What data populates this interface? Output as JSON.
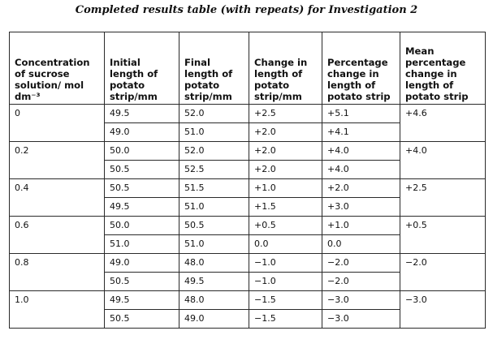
{
  "title": "Completed results table (with repeats) for Investigation 2",
  "table": {
    "headers": [
      "Concentration of sucrose solution/ mol dm⁻³",
      "Initial length of potato strip/mm",
      "Final length of potato strip/mm",
      "Change in length of potato strip/mm",
      "Percentage change in length of potato strip",
      "Mean percentage change in length of potato strip"
    ],
    "groups": [
      {
        "concentration": "0",
        "mean": "+4.6",
        "rows": [
          {
            "initial": "49.5",
            "final": "52.0",
            "change": "+2.5",
            "percent": "+5.1"
          },
          {
            "initial": "49.0",
            "final": "51.0",
            "change": "+2.0",
            "percent": "+4.1"
          }
        ]
      },
      {
        "concentration": "0.2",
        "mean": "+4.0",
        "rows": [
          {
            "initial": "50.0",
            "final": "52.0",
            "change": "+2.0",
            "percent": "+4.0"
          },
          {
            "initial": "50.5",
            "final": "52.5",
            "change": "+2.0",
            "percent": "+4.0"
          }
        ]
      },
      {
        "concentration": "0.4",
        "mean": "+2.5",
        "rows": [
          {
            "initial": "50.5",
            "final": "51.5",
            "change": "+1.0",
            "percent": "+2.0"
          },
          {
            "initial": "49.5",
            "final": "51.0",
            "change": "+1.5",
            "percent": "+3.0"
          }
        ]
      },
      {
        "concentration": "0.6",
        "mean": "+0.5",
        "rows": [
          {
            "initial": "50.0",
            "final": "50.5",
            "change": "+0.5",
            "percent": "+1.0"
          },
          {
            "initial": "51.0",
            "final": "51.0",
            "change": "0.0",
            "percent": "0.0"
          }
        ]
      },
      {
        "concentration": "0.8",
        "mean": "−2.0",
        "rows": [
          {
            "initial": "49.0",
            "final": "48.0",
            "change": "−1.0",
            "percent": "−2.0"
          },
          {
            "initial": "50.5",
            "final": "49.5",
            "change": "−1.0",
            "percent": "−2.0"
          }
        ]
      },
      {
        "concentration": "1.0",
        "mean": "−3.0",
        "rows": [
          {
            "initial": "49.5",
            "final": "48.0",
            "change": "−1.5",
            "percent": "−3.0"
          },
          {
            "initial": "50.5",
            "final": "49.0",
            "change": "−1.5",
            "percent": "−3.0"
          }
        ]
      }
    ]
  }
}
